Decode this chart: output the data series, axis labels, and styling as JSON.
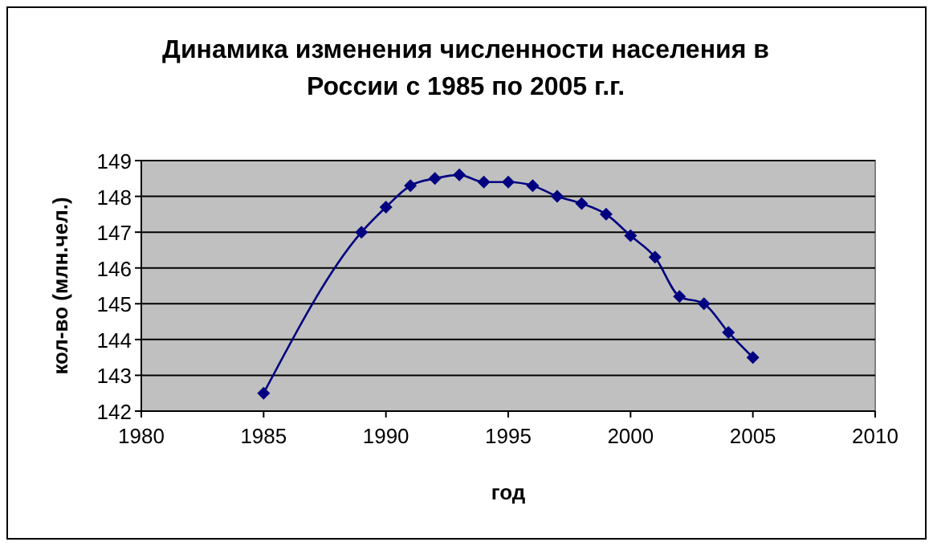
{
  "chart_data": {
    "type": "line",
    "title": "Динамика изменения численности населения в России с 1985 по 2005 г.г.",
    "xlabel": "год",
    "ylabel": "кол-во (млн.чел.)",
    "x": [
      1985,
      1989,
      1990,
      1991,
      1992,
      1993,
      1994,
      1995,
      1996,
      1997,
      1998,
      1999,
      2000,
      2001,
      2002,
      2003,
      2004,
      2005
    ],
    "series": [
      {
        "color": "#000080",
        "values": [
          142.5,
          147.0,
          147.7,
          148.3,
          148.5,
          148.6,
          148.4,
          148.4,
          148.3,
          148.0,
          147.8,
          147.5,
          146.9,
          146.3,
          145.2,
          145.0,
          144.2,
          143.5
        ]
      }
    ],
    "xlim": [
      1980,
      2010
    ],
    "xticks": [
      1980,
      1985,
      1990,
      1995,
      2000,
      2005,
      2010
    ],
    "ylim": [
      142,
      149
    ],
    "yticks": [
      142,
      143,
      144,
      145,
      146,
      147,
      148,
      149
    ],
    "grid": "y",
    "marker": "diamond",
    "line_style": "solid"
  }
}
